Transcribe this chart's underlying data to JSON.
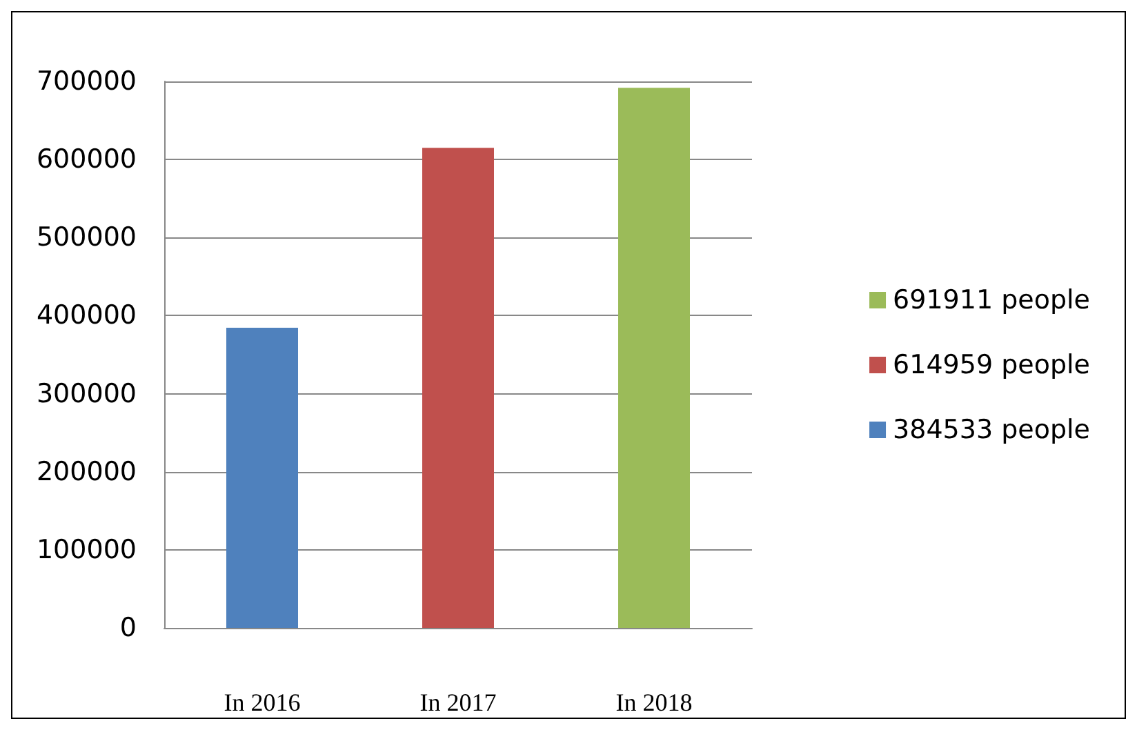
{
  "chart_data": {
    "type": "bar",
    "categories": [
      "In 2016",
      "In 2017",
      "In 2018"
    ],
    "series": [
      {
        "name": "384533 people",
        "color": "#4f81bd",
        "values": [
          384533,
          null,
          null
        ]
      },
      {
        "name": "614959 people",
        "color": "#c0504d",
        "values": [
          null,
          614959,
          null
        ]
      },
      {
        "name": "691911 people",
        "color": "#9bbb59",
        "values": [
          null,
          null,
          691911
        ]
      }
    ],
    "ylim": [
      0,
      700000
    ],
    "yticks": [
      0,
      100000,
      200000,
      300000,
      400000,
      500000,
      600000,
      700000
    ],
    "grid": "y",
    "legend": "right"
  }
}
